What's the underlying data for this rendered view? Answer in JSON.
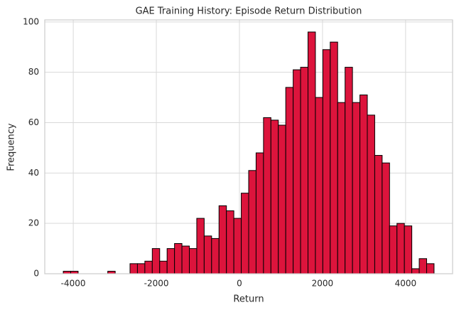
{
  "chart_data": {
    "type": "histogram",
    "title": "GAE Training History: Episode Return Distribution",
    "xlabel": "Return",
    "ylabel": "Frequency",
    "bins": [
      -4240,
      -4061.5,
      -3883,
      -3704.5,
      -3526,
      -3347.5,
      -3169,
      -2990.5,
      -2812,
      -2633.5,
      -2455,
      -2276.5,
      -2098,
      -1919.5,
      -1741,
      -1562.5,
      -1384,
      -1205.5,
      -1027,
      -848.5,
      -670,
      -491.5,
      -313,
      -134.5,
      44,
      222.5,
      401,
      579.5,
      758,
      936.5,
      1115,
      1293.5,
      1472,
      1650.5,
      1829,
      2007.5,
      2186,
      2364.5,
      2543,
      2721.5,
      2900,
      3078.5,
      3257,
      3435.5,
      3614,
      3792.5,
      3971,
      4149.5,
      4328,
      4506.5,
      4685
    ],
    "values": [
      1,
      1,
      0,
      0,
      0,
      0,
      1,
      0,
      0,
      4,
      4,
      5,
      10,
      5,
      10,
      12,
      11,
      10,
      22,
      15,
      14,
      27,
      25,
      22,
      32,
      41,
      48,
      62,
      61,
      59,
      74,
      81,
      82,
      96,
      70,
      89,
      92,
      68,
      82,
      68,
      71,
      63,
      47,
      44,
      19,
      20,
      19,
      2,
      6,
      4
    ],
    "color": "#dc143c",
    "edgecolor": "#000000",
    "xlim": [
      -4686,
      5131
    ],
    "ylim": [
      0,
      100.8
    ],
    "xticks": [
      -4000,
      -2000,
      0,
      2000,
      4000
    ],
    "yticks": [
      0,
      20,
      40,
      60,
      80,
      100
    ],
    "grid": true
  }
}
